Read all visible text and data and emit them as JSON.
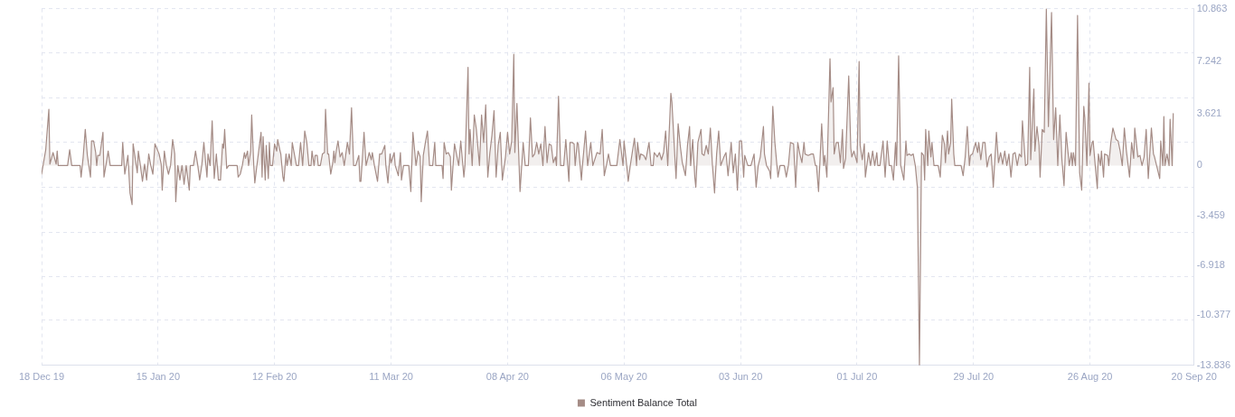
{
  "chart_data": {
    "type": "area",
    "legend": "bottom",
    "grid": true,
    "marker": "none",
    "xlim": [
      "2019-12-18",
      "2020-09-20"
    ],
    "xticks": [
      {
        "value": "2019-12-18",
        "label": "18 Dec 19"
      },
      {
        "value": "2020-01-15",
        "label": "15 Jan 20"
      },
      {
        "value": "2020-02-12",
        "label": "12 Feb 20"
      },
      {
        "value": "2020-03-11",
        "label": "11 Mar 20"
      },
      {
        "value": "2020-04-08",
        "label": "08 Apr 20"
      },
      {
        "value": "2020-05-06",
        "label": "06 May 20"
      },
      {
        "value": "2020-06-03",
        "label": "03 Jun 20"
      },
      {
        "value": "2020-07-01",
        "label": "01 Jul 20"
      },
      {
        "value": "2020-07-29",
        "label": "29 Jul 20"
      },
      {
        "value": "2020-08-26",
        "label": "26 Aug 20"
      },
      {
        "value": "2020-09-20",
        "label": "20 Sep 20"
      }
    ],
    "ylim": [
      -13.836,
      10.863
    ],
    "yticks": [
      10.863,
      {
        "value": 7.8,
        "label": null
      },
      7.242,
      {
        "value": 4.7,
        "label": null
      },
      3.621,
      {
        "value": 1.6,
        "label": null
      },
      0,
      {
        "value": -1.5,
        "label": null
      },
      -3.459,
      {
        "value": -4.6,
        "label": null
      },
      -6.918,
      {
        "value": -7.7,
        "label": null
      },
      -10.377,
      {
        "value": -10.7,
        "label": null
      },
      -13.836
    ],
    "x": [
      "2019-12-18",
      "2019-12-19",
      "2019-12-19T18:00",
      "2019-12-20",
      "2019-12-20T18:00",
      "2019-12-21T12:00",
      "2019-12-21T18:00",
      "2019-12-22",
      "2019-12-24T06:00",
      "2019-12-24T18:00",
      "2019-12-25T06:00",
      "2019-12-27T06:00",
      "2019-12-27T12:00",
      "2019-12-28",
      "2019-12-28T12:00",
      "2019-12-29",
      "2019-12-29T18:00",
      "2019-12-30",
      "2019-12-30T12:00",
      "2019-12-31",
      "2019-12-31T06:00",
      "2019-12-31T12:00",
      "2020-01-01",
      "2020-01-01T18:00",
      "2020-01-02",
      "2020-01-02T12:00",
      "2020-01-03",
      "2020-01-03T12:00",
      "2020-01-06T06:00",
      "2020-01-06T12:00",
      "2020-01-07",
      "2020-01-07T18:00",
      "2020-01-08T06:00",
      "2020-01-08T18:00",
      "2020-01-09",
      "2020-01-10",
      "2020-01-10T06:00",
      "2020-01-10T18:00",
      "2020-01-11T06:00",
      "2020-01-11T18:00",
      "2020-01-12T06:00",
      "2020-01-12T18:00",
      "2020-01-13T06:00",
      "2020-01-13T18:00",
      "2020-01-14T06:00",
      "2020-01-15T06:00",
      "2020-01-15T18:00",
      "2020-01-16",
      "2020-01-16T12:00",
      "2020-01-17",
      "2020-01-17T12:00",
      "2020-01-18",
      "2020-01-18T12:00",
      "2020-01-19",
      "2020-01-19T06:00",
      "2020-01-19T18:00",
      "2020-01-20T06:00",
      "2020-01-20T18:00",
      "2020-01-21T06:00",
      "2020-01-21T18:00",
      "2020-01-22T12:00",
      "2020-01-22T18:00",
      "2020-01-23T12:00",
      "2020-01-24",
      "2020-01-24T12:00",
      "2020-01-25",
      "2020-01-25T12:00",
      "2020-01-26",
      "2020-01-26T18:00",
      "2020-01-27",
      "2020-01-27T12:00",
      "2020-01-28",
      "2020-01-28T12:00",
      "2020-01-29",
      "2020-01-29T12:00",
      "2020-01-30",
      "2020-01-30T12:00",
      "2020-01-30T18:00",
      "2020-01-31",
      "2020-01-31T12:00",
      "2020-02-01",
      "2020-02-03",
      "2020-02-03T06:00",
      "2020-02-03T18:00",
      "2020-02-04T06:00",
      "2020-02-04T18:00",
      "2020-02-05",
      "2020-02-05T12:00",
      "2020-02-05T18:00",
      "2020-02-06T06:00",
      "2020-02-06T12:00",
      "2020-02-07",
      "2020-02-07T06:00",
      "2020-02-07T18:00",
      "2020-02-08T18:00",
      "2020-02-09",
      "2020-02-09T06:00",
      "2020-02-09T18:00",
      "2020-02-10",
      "2020-02-10T12:00",
      "2020-02-10T18:00",
      "2020-02-11",
      "2020-02-11T12:00",
      "2020-02-12",
      "2020-02-12T12:00",
      "2020-02-12T18:00",
      "2020-02-13T06:00",
      "2020-02-13T12:00",
      "2020-02-14",
      "2020-02-14T06:00",
      "2020-02-14T18:00",
      "2020-02-15",
      "2020-02-15T12:00",
      "2020-02-16",
      "2020-02-16T06:00",
      "2020-02-16T18:00",
      "2020-02-17T06:00",
      "2020-02-17T18:00",
      "2020-02-18T06:00",
      "2020-02-18T18:00",
      "2020-02-19T06:00",
      "2020-02-19T18:00",
      "2020-02-20T06:00",
      "2020-02-20T18:00",
      "2020-02-21",
      "2020-02-21T12:00",
      "2020-02-21T18:00",
      "2020-02-22T06:00",
      "2020-02-22T12:00",
      "2020-02-23",
      "2020-02-23T12:00",
      "2020-02-24",
      "2020-02-24T06:00",
      "2020-02-24T18:00",
      "2020-02-25",
      "2020-02-25T12:00",
      "2020-02-26",
      "2020-02-26T06:00",
      "2020-02-26T12:00",
      "2020-02-26T18:00",
      "2020-02-27T06:00",
      "2020-02-27T18:00",
      "2020-02-28T06:00",
      "2020-02-28T18:00",
      "2020-02-29T12:00",
      "2020-03-01",
      "2020-03-01T12:00",
      "2020-03-02",
      "2020-03-02T12:00",
      "2020-03-03T06:00",
      "2020-03-03T12:00",
      "2020-03-03T18:00",
      "2020-03-04T12:00",
      "2020-03-05",
      "2020-03-05T18:00",
      "2020-03-06T06:00",
      "2020-03-06T12:00",
      "2020-03-07",
      "2020-03-07T18:00",
      "2020-03-08T06:00",
      "2020-03-08T18:00",
      "2020-03-09T12:00",
      "2020-03-09T18:00",
      "2020-03-10T06:00",
      "2020-03-10T18:00",
      "2020-03-11",
      "2020-03-11T18:00",
      "2020-03-12",
      "2020-03-12T18:00",
      "2020-03-13T06:00",
      "2020-03-13T12:00",
      "2020-03-14",
      "2020-03-15T06:00",
      "2020-03-15T18:00",
      "2020-03-16T06:00",
      "2020-03-17",
      "2020-03-17T12:00",
      "2020-03-18",
      "2020-03-18T06:00",
      "2020-03-18T18:00",
      "2020-03-19T06:00",
      "2020-03-19T18:00",
      "2020-03-20T06:00",
      "2020-03-21",
      "2020-03-21T12:00",
      "2020-03-21T18:00",
      "2020-03-23T06:00",
      "2020-03-23T12:00",
      "2020-03-23T18:00",
      "2020-03-24T06:00",
      "2020-03-24T18:00",
      "2020-03-25T06:00",
      "2020-03-25T12:00",
      "2020-03-26T06:00",
      "2020-03-27T06:00",
      "2020-03-27T18:00",
      "2020-03-28T12:00",
      "2020-03-28T18:00",
      "2020-03-29T12:00",
      "2020-03-29T18:00",
      "2020-03-30",
      "2020-03-30T12:00",
      "2020-03-31",
      "2020-03-31T12:00",
      "2020-04-01T06:00",
      "2020-04-01T18:00",
      "2020-04-02T06:00",
      "2020-04-02T18:00",
      "2020-04-03T06:00",
      "2020-04-03T18:00",
      "2020-04-04T06:00",
      "2020-04-04T18:00",
      "2020-04-05T06:00",
      "2020-04-05T18:00",
      "2020-04-06T06:00",
      "2020-04-06T18:00",
      "2020-04-07T12:00",
      "2020-04-08",
      "2020-04-08T12:00",
      "2020-04-09",
      "2020-04-09T12:00",
      "2020-04-09T18:00",
      "2020-04-10T06:00",
      "2020-04-11",
      "2020-04-11T18:00",
      "2020-04-12T06:00",
      "2020-04-13",
      "2020-04-13T12:00",
      "2020-04-14",
      "2020-04-14T12:00",
      "2020-04-15",
      "2020-04-15T12:00",
      "2020-04-16",
      "2020-04-16T12:00",
      "2020-04-17",
      "2020-04-17T12:00",
      "2020-04-18",
      "2020-04-18T12:00",
      "2020-04-19",
      "2020-04-19T12:00",
      "2020-04-19T18:00",
      "2020-04-20T06:00",
      "2020-04-20T18:00",
      "2020-04-21T12:00",
      "2020-04-22",
      "2020-04-22T18:00",
      "2020-04-23",
      "2020-04-23T12:00",
      "2020-04-24",
      "2020-04-24T06:00",
      "2020-04-24T18:00",
      "2020-04-25",
      "2020-04-25T18:00",
      "2020-04-26",
      "2020-04-26T18:00",
      "2020-04-27T06:00",
      "2020-04-28",
      "2020-04-28T12:00",
      "2020-04-29T12:00",
      "2020-04-30T06:00",
      "2020-04-30T18:00",
      "2020-05-01T06:00",
      "2020-05-01T18:00",
      "2020-05-02T06:00",
      "2020-05-02T18:00",
      "2020-05-04T06:00",
      "2020-05-05",
      "2020-05-05T18:00",
      "2020-05-06",
      "2020-05-06T12:00",
      "2020-05-07",
      "2020-05-07T12:00",
      "2020-05-08T12:00",
      "2020-05-09",
      "2020-05-09T06:00",
      "2020-05-09T18:00",
      "2020-05-10",
      "2020-05-10T18:00",
      "2020-05-11T06:00",
      "2020-05-11T12:00",
      "2020-05-12",
      "2020-05-12T12:00",
      "2020-05-13",
      "2020-05-13T06:00",
      "2020-05-14",
      "2020-05-14T12:00",
      "2020-05-15",
      "2020-05-15T12:00",
      "2020-05-16",
      "2020-05-16T12:00",
      "2020-05-17T06:00",
      "2020-05-17T12:00",
      "2020-05-18T12:00",
      "2020-05-19",
      "2020-05-19T12:00",
      "2020-05-20",
      "2020-05-20T18:00",
      "2020-05-21T06:00",
      "2020-05-21T18:00",
      "2020-05-22",
      "2020-05-22T12:00",
      "2020-05-23",
      "2020-05-23T06:00",
      "2020-05-23T18:00",
      "2020-05-24T12:00",
      "2020-05-24T18:00",
      "2020-05-25T06:00",
      "2020-05-25T18:00",
      "2020-05-26T06:00",
      "2020-05-26T18:00",
      "2020-05-27T06:00",
      "2020-05-27T18:00",
      "2020-05-28T06:00",
      "2020-05-28T18:00",
      "2020-05-29T06:00",
      "2020-05-30",
      "2020-05-30T12:00",
      "2020-05-31",
      "2020-05-31T18:00",
      "2020-06-01T06:00",
      "2020-06-01T18:00",
      "2020-06-02T06:00",
      "2020-06-02T18:00",
      "2020-06-03T06:00",
      "2020-06-03T18:00",
      "2020-06-04",
      "2020-06-04T18:00",
      "2020-06-05T12:00",
      "2020-06-06T06:00",
      "2020-06-06T18:00",
      "2020-06-07T06:00",
      "2020-06-07T18:00",
      "2020-06-08T12:00",
      "2020-06-08T18:00",
      "2020-06-09T06:00",
      "2020-06-10",
      "2020-06-10T06:00",
      "2020-06-10T18:00",
      "2020-06-11T06:00",
      "2020-06-12",
      "2020-06-12T12:00",
      "2020-06-13T12:00",
      "2020-06-14",
      "2020-06-14T12:00",
      "2020-06-15",
      "2020-06-15T18:00",
      "2020-06-16T06:00",
      "2020-06-16T18:00",
      "2020-06-17T06:00",
      "2020-06-17T18:00",
      "2020-06-18T06:00",
      "2020-06-18T12:00",
      "2020-06-19T06:00",
      "2020-06-20",
      "2020-06-20T12:00",
      "2020-06-21",
      "2020-06-21T06:00",
      "2020-06-21T18:00",
      "2020-06-22T12:00",
      "2020-06-23",
      "2020-06-23T06:00",
      "2020-06-23T18:00",
      "2020-06-24T12:00",
      "2020-06-24T18:00",
      "2020-06-25T06:00",
      "2020-06-25T12:00",
      "2020-06-26",
      "2020-06-26T12:00",
      "2020-06-27",
      "2020-06-27T12:00",
      "2020-06-27T18:00",
      "2020-06-28T06:00",
      "2020-06-29",
      "2020-06-29T12:00",
      "2020-06-29T18:00",
      "2020-06-30T06:00",
      "2020-07-01",
      "2020-07-01T12:00",
      "2020-07-01T18:00",
      "2020-07-02T06:00",
      "2020-07-02T18:00",
      "2020-07-03",
      "2020-07-03T18:00",
      "2020-07-04T06:00",
      "2020-07-04T18:00",
      "2020-07-05T06:00",
      "2020-07-05T18:00",
      "2020-07-06",
      "2020-07-06T12:00",
      "2020-07-07T06:00",
      "2020-07-07T18:00",
      "2020-07-08T06:00",
      "2020-07-08T18:00",
      "2020-07-09T06:00",
      "2020-07-09T18:00",
      "2020-07-10T06:00",
      "2020-07-10T12:00",
      "2020-07-11",
      "2020-07-11T12:00",
      "2020-07-12T06:00",
      "2020-07-12T18:00",
      "2020-07-13",
      "2020-07-13T12:00",
      "2020-07-14",
      "2020-07-14T12:00",
      "2020-07-15",
      "2020-07-15T12:00",
      "2020-07-16",
      "2020-07-16T12:00",
      "2020-07-17",
      "2020-07-17T06:00",
      "2020-07-17T12:00",
      "2020-07-18",
      "2020-07-18T06:00",
      "2020-07-18T18:00",
      "2020-07-19",
      "2020-07-19T12:00",
      "2020-07-20T12:00",
      "2020-07-21",
      "2020-07-21T12:00",
      "2020-07-22",
      "2020-07-22T06:00",
      "2020-07-22T18:00",
      "2020-07-23",
      "2020-07-23T12:00",
      "2020-07-23T18:00",
      "2020-07-24T06:00",
      "2020-07-24T12:00",
      "2020-07-26",
      "2020-07-26T12:00",
      "2020-07-27",
      "2020-07-27T12:00",
      "2020-07-28",
      "2020-07-28T06:00",
      "2020-07-28T18:00",
      "2020-07-29T12:00",
      "2020-07-30",
      "2020-07-30T06:00",
      "2020-07-30T18:00",
      "2020-07-31T06:00",
      "2020-07-31T18:00",
      "2020-08-01T06:00",
      "2020-08-01T18:00",
      "2020-08-02T06:00",
      "2020-08-02T18:00",
      "2020-08-03T12:00",
      "2020-08-04",
      "2020-08-04T12:00",
      "2020-08-05",
      "2020-08-05T12:00",
      "2020-08-06",
      "2020-08-06T12:00",
      "2020-08-07",
      "2020-08-07T12:00",
      "2020-08-08",
      "2020-08-08T12:00",
      "2020-08-09",
      "2020-08-09T12:00",
      "2020-08-09T18:00",
      "2020-08-10T12:00",
      "2020-08-11",
      "2020-08-11T12:00",
      "2020-08-11T18:00",
      "2020-08-12T12:00",
      "2020-08-12T18:00",
      "2020-08-13T06:00",
      "2020-08-13T18:00",
      "2020-08-14",
      "2020-08-14T12:00",
      "2020-08-15",
      "2020-08-15T12:00",
      "2020-08-16",
      "2020-08-16T18:00",
      "2020-08-17T06:00",
      "2020-08-17T18:00",
      "2020-08-18T06:00",
      "2020-08-18T18:00",
      "2020-08-19T06:00",
      "2020-08-19T18:00",
      "2020-08-20T06:00",
      "2020-08-20T18:00",
      "2020-08-21",
      "2020-08-21T12:00",
      "2020-08-21T18:00",
      "2020-08-22",
      "2020-08-22T12:00",
      "2020-08-23",
      "2020-08-23T12:00",
      "2020-08-24",
      "2020-08-24T12:00",
      "2020-08-24T18:00",
      "2020-08-25T06:00",
      "2020-08-25T18:00",
      "2020-08-26",
      "2020-08-26T12:00",
      "2020-08-26T18:00",
      "2020-08-27T06:00",
      "2020-08-27T18:00",
      "2020-08-28",
      "2020-08-28T12:00",
      "2020-08-28T18:00",
      "2020-08-29T06:00",
      "2020-08-29T12:00",
      "2020-08-30T06:00",
      "2020-08-30T12:00",
      "2020-08-31",
      "2020-08-31T12:00",
      "2020-09-01T06:00",
      "2020-09-01T18:00",
      "2020-09-02T06:00",
      "2020-09-02T18:00",
      "2020-09-03T06:00",
      "2020-09-03T18:00",
      "2020-09-04T12:00",
      "2020-09-05",
      "2020-09-05T12:00",
      "2020-09-05T18:00",
      "2020-09-06T12:00",
      "2020-09-07",
      "2020-09-07T12:00",
      "2020-09-08",
      "2020-09-08T12:00",
      "2020-09-09",
      "2020-09-09T18:00",
      "2020-09-10T06:00",
      "2020-09-10T12:00",
      "2020-09-11",
      "2020-09-11T18:00",
      "2020-09-12",
      "2020-09-12T12:00",
      "2020-09-12T18:00",
      "2020-09-13",
      "2020-09-13T12:00",
      "2020-09-14",
      "2020-09-14T06:00",
      "2020-09-14T18:00",
      "2020-09-15"
    ],
    "series": [
      {
        "name": "Sentiment Balance Total",
        "color": "#a58c86",
        "values": [
          -0.6,
          1.1,
          3.9,
          0.1,
          0.9,
          0.1,
          1.0,
          0,
          0,
          1.1,
          0,
          0,
          -0.8,
          0.6,
          2.5,
          0.7,
          -0.8,
          1.7,
          1.7,
          0.9,
          0,
          0.7,
          0.7,
          2.3,
          -0.8,
          0.1,
          1.0,
          0,
          0,
          1.6,
          -0.6,
          0.7,
          -1.9,
          -2.7,
          1.5,
          -0.5,
          1.0,
          0,
          -1.1,
          0.1,
          -1.0,
          0.8,
          0,
          -0.6,
          1.5,
          0.8,
          0.1,
          -1.7,
          1.0,
          0,
          -0.6,
          0,
          1.8,
          0.8,
          -2.5,
          0,
          -1.0,
          0,
          -1.3,
          0,
          -1.7,
          0,
          0,
          1.0,
          0.1,
          -1.0,
          0,
          1.6,
          -0.8,
          0.8,
          0,
          3.1,
          -0.9,
          0.8,
          -1.0,
          -1.0,
          1.5,
          1.2,
          2.5,
          -0.2,
          0,
          0,
          -0.8,
          -0.6,
          0,
          0.9,
          0.5,
          1.0,
          0,
          1.0,
          3.5,
          0,
          -1.2,
          0,
          2.3,
          -0.8,
          2.0,
          -1.0,
          1.4,
          -0.9,
          1.6,
          0,
          0,
          1.5,
          1.0,
          1.8,
          1.1,
          0.8,
          -0.8,
          -1.1,
          0.8,
          0,
          0.8,
          0,
          1.6,
          0.8,
          0,
          0,
          1.6,
          0,
          2.4,
          1.6,
          0,
          0,
          1.0,
          0,
          0.7,
          0.7,
          0,
          0,
          0.8,
          0.9,
          3.9,
          0.8,
          0.8,
          -0.6,
          0.2,
          1.0,
          0.2,
          0.9,
          1.7,
          0.6,
          0.9,
          0,
          1.6,
          0.8,
          4.0,
          0,
          0,
          0.7,
          -1.1,
          -1.1,
          2.3,
          0,
          0.9,
          0.4,
          0.9,
          0,
          -1.1,
          0.8,
          0.8,
          1.4,
          0,
          -1.2,
          0.8,
          0.2,
          0.9,
          0,
          -0.7,
          0.9,
          -1.0,
          0,
          0,
          -1.8,
          2.3,
          0,
          1.0,
          0.6,
          -2.5,
          0.7,
          1.6,
          2.4,
          0,
          0,
          1.6,
          0,
          0,
          -0.9,
          1.6,
          0.8,
          0.9,
          0.6,
          -1.7,
          1.5,
          0,
          1.7,
          -0.8,
          0,
          6.8,
          0.8,
          2.5,
          0,
          3.5,
          2.5,
          0,
          3.5,
          1.6,
          4.2,
          -0.8,
          0.9,
          2.1,
          3.8,
          -0.8,
          1.4,
          2.3,
          -1.0,
          0.6,
          2.3,
          0.8,
          1.7,
          7.7,
          0.9,
          4.3,
          -1.8,
          1.6,
          0,
          0,
          3.3,
          0.6,
          0.8,
          1.6,
          0.8,
          1.5,
          0,
          2.7,
          0.2,
          1.5,
          1.4,
          0.2,
          0.6,
          0,
          4.8,
          0,
          0,
          1.8,
          -1.1,
          1.6,
          1.6,
          1.5,
          0,
          1.6,
          1.5,
          -1.0,
          0,
          2.4,
          0,
          1.6,
          0,
          0.9,
          0.8,
          2.5,
          -0.7,
          0,
          0.8,
          0,
          0,
          1.8,
          0,
          1.7,
          0.4,
          -1.1,
          0,
          1.9,
          0,
          1.6,
          0.4,
          0.8,
          0.7,
          0.4,
          0.8,
          1.6,
          0,
          0,
          0.9,
          0.6,
          0.9,
          0.4,
          0.9,
          2.4,
          0,
          5.0,
          4.4,
          -0.9,
          2.9,
          1.4,
          0.2,
          -0.7,
          1.4,
          2.7,
          0,
          1.8,
          -0.8,
          -1.5,
          1.6,
          2.5,
          0.8,
          0.7,
          1.4,
          0.8,
          2.6,
          0,
          -1.9,
          0.8,
          2.4,
          0,
          0.6,
          0.9,
          -0.7,
          1.6,
          -0.5,
          0.8,
          -1.7,
          1.7,
          1.7,
          -0.8,
          0.7,
          0,
          0,
          0.8,
          -1.5,
          0,
          0.6,
          2.7,
          0.8,
          0,
          -0.4,
          -0.9,
          4.1,
          1.6,
          -0.8,
          0,
          0,
          -0.8,
          0,
          1.6,
          1.5,
          -1.5,
          1.6,
          0.8,
          0.2,
          1.6,
          0.8,
          0.7,
          0.8,
          0.8,
          0,
          0,
          -1.8,
          2.9,
          0,
          0.7,
          -0.8,
          7.4,
          4.4,
          5.4,
          0.8,
          1.6,
          1.6,
          0.2,
          2.5,
          -0.2,
          0.5,
          6.2,
          1.2,
          0.6,
          1.0,
          0.2,
          7.2,
          1.4,
          0.4,
          1.5,
          -0.8,
          0.9,
          0,
          1.0,
          0,
          0.9,
          0,
          0,
          1.7,
          -0.8,
          1.7,
          0,
          0,
          -1.0,
          1.6,
          0,
          7.6,
          0,
          -1.0,
          1.7,
          0.7,
          0.8,
          0.7,
          0.8,
          0,
          -1.5,
          -13.83,
          0.9,
          0.7,
          -1.0,
          2.5,
          0,
          2.4,
          0.6,
          1.6,
          0,
          0,
          -0.8,
          2.1,
          1.5,
          0.2,
          2.4,
          0.8,
          1.6,
          4.6,
          0.8,
          0,
          0,
          -0.7,
          0.6,
          2.7,
          0,
          0.7,
          0.8,
          1.6,
          0.9,
          1.6,
          0.4,
          1.6,
          1.6,
          -0.1,
          0.6,
          0.8,
          -1.5,
          2.3,
          0.2,
          0.9,
          0.1,
          1.0,
          0,
          0.8,
          -0.8,
          0.8,
          0.9,
          0,
          0.8,
          0.6,
          3.1,
          0,
          0.1,
          6.8,
          0.4,
          5.3,
          1.0,
          2.7,
          1.4,
          -0.8,
          2.5,
          2.3,
          10.86,
          2.7,
          10.6,
          1.8,
          4.0,
          0,
          3.5,
          0.4,
          -1.4,
          2.3,
          0.8,
          0,
          0.9,
          0,
          0.9,
          0,
          10.4,
          -0.5,
          -1.7,
          4.1,
          3.3,
          0,
          5.7,
          0.7,
          1.6,
          1.7,
          0,
          -1.6,
          0.8,
          0,
          1.0,
          -0.8,
          0.8,
          0.7,
          0,
          1.6,
          2.6,
          1.8,
          1.7,
          1.0,
          0,
          2.6,
          1.0,
          -0.8,
          1.6,
          0.5,
          2.6,
          0.6,
          0.7,
          0,
          0.6,
          2.5,
          -0.9,
          2.6,
          0.8,
          0.6,
          0,
          -0.9,
          1.7,
          0,
          3.4,
          0,
          0.8,
          0,
          3.2,
          0,
          3.6
        ]
      }
    ]
  }
}
